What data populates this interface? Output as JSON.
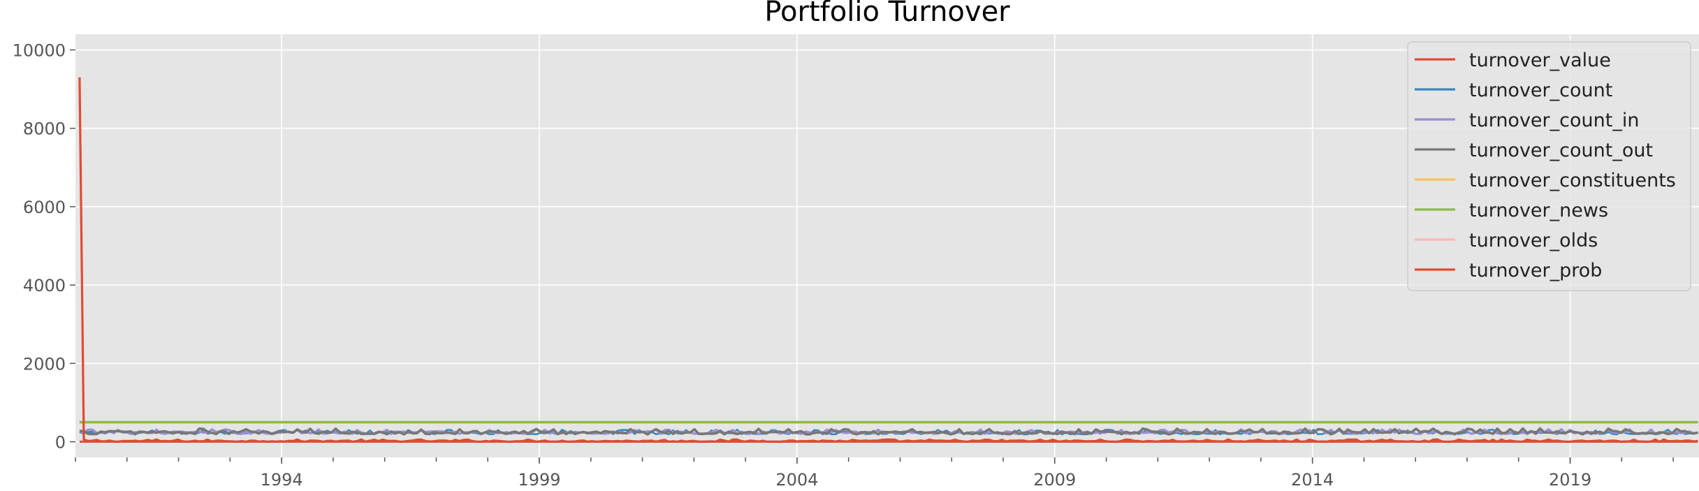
{
  "chart_data": {
    "type": "line",
    "title": "Portfolio Turnover",
    "xlabel": "",
    "ylabel": "",
    "x_range": [
      1990.0,
      2021.5
    ],
    "ylim": [
      -400,
      10400
    ],
    "x_ticks": [
      {
        "label": "1994",
        "value": 1994
      },
      {
        "label": "1999",
        "value": 1999
      },
      {
        "label": "2004",
        "value": 2004
      },
      {
        "label": "2009",
        "value": 2009
      },
      {
        "label": "2014",
        "value": 2014
      },
      {
        "label": "2019",
        "value": 2019
      }
    ],
    "y_ticks": [
      {
        "label": "0",
        "value": 0
      },
      {
        "label": "2000",
        "value": 2000
      },
      {
        "label": "4000",
        "value": 4000
      },
      {
        "label": "6000",
        "value": 6000
      },
      {
        "label": "8000",
        "value": 8000
      },
      {
        "label": "10000",
        "value": 10000
      }
    ],
    "grid": true,
    "legend_position": "top-right",
    "series": [
      {
        "name": "turnover_value",
        "color": "#E24A33",
        "base": 20,
        "amplitude": 40,
        "first_value": 9300
      },
      {
        "name": "turnover_count",
        "color": "#348ABD",
        "base": 230,
        "amplitude": 80
      },
      {
        "name": "turnover_count_in",
        "color": "#988ED5",
        "base": 240,
        "amplitude": 80
      },
      {
        "name": "turnover_count_out",
        "color": "#777777",
        "base": 240,
        "amplitude": 100
      },
      {
        "name": "turnover_constituents",
        "color": "#FBC15E",
        "base": 500,
        "amplitude": 0
      },
      {
        "name": "turnover_news",
        "color": "#8EBA42",
        "base": 500,
        "amplitude": 0
      },
      {
        "name": "turnover_olds",
        "color": "#FFB5B8",
        "base": 5,
        "amplitude": 0
      },
      {
        "name": "turnover_prob",
        "color": "#E24A33",
        "base": 2,
        "amplitude": 0
      }
    ]
  }
}
